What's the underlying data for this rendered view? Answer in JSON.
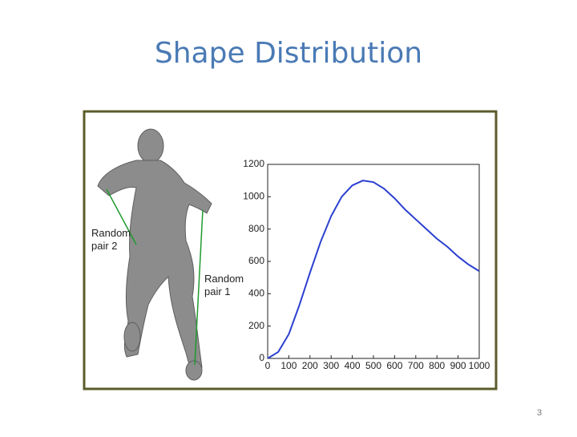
{
  "title": "Shape Distribution",
  "page_number": "3",
  "figure": {
    "labels": [
      [
        "Random",
        "pair 2"
      ],
      [
        "Random",
        "pair 1"
      ]
    ]
  },
  "chart_data": {
    "type": "line",
    "x": [
      0,
      50,
      100,
      150,
      200,
      250,
      300,
      350,
      400,
      450,
      500,
      550,
      600,
      650,
      700,
      750,
      800,
      850,
      900,
      950,
      1000
    ],
    "series": [
      {
        "color": "#2a3fd0",
        "values": [
          0,
          40,
          150,
          330,
          530,
          720,
          880,
          1000,
          1070,
          1100,
          1090,
          1050,
          990,
          920,
          860,
          800,
          740,
          690,
          630,
          580,
          540
        ]
      }
    ],
    "xlim": [
      0,
      1000
    ],
    "ylim": [
      0,
      1200
    ],
    "xticks": [
      0,
      100,
      200,
      300,
      400,
      500,
      600,
      700,
      800,
      900,
      1000
    ],
    "yticks": [
      0,
      200,
      400,
      600,
      800,
      1000,
      1200
    ]
  }
}
